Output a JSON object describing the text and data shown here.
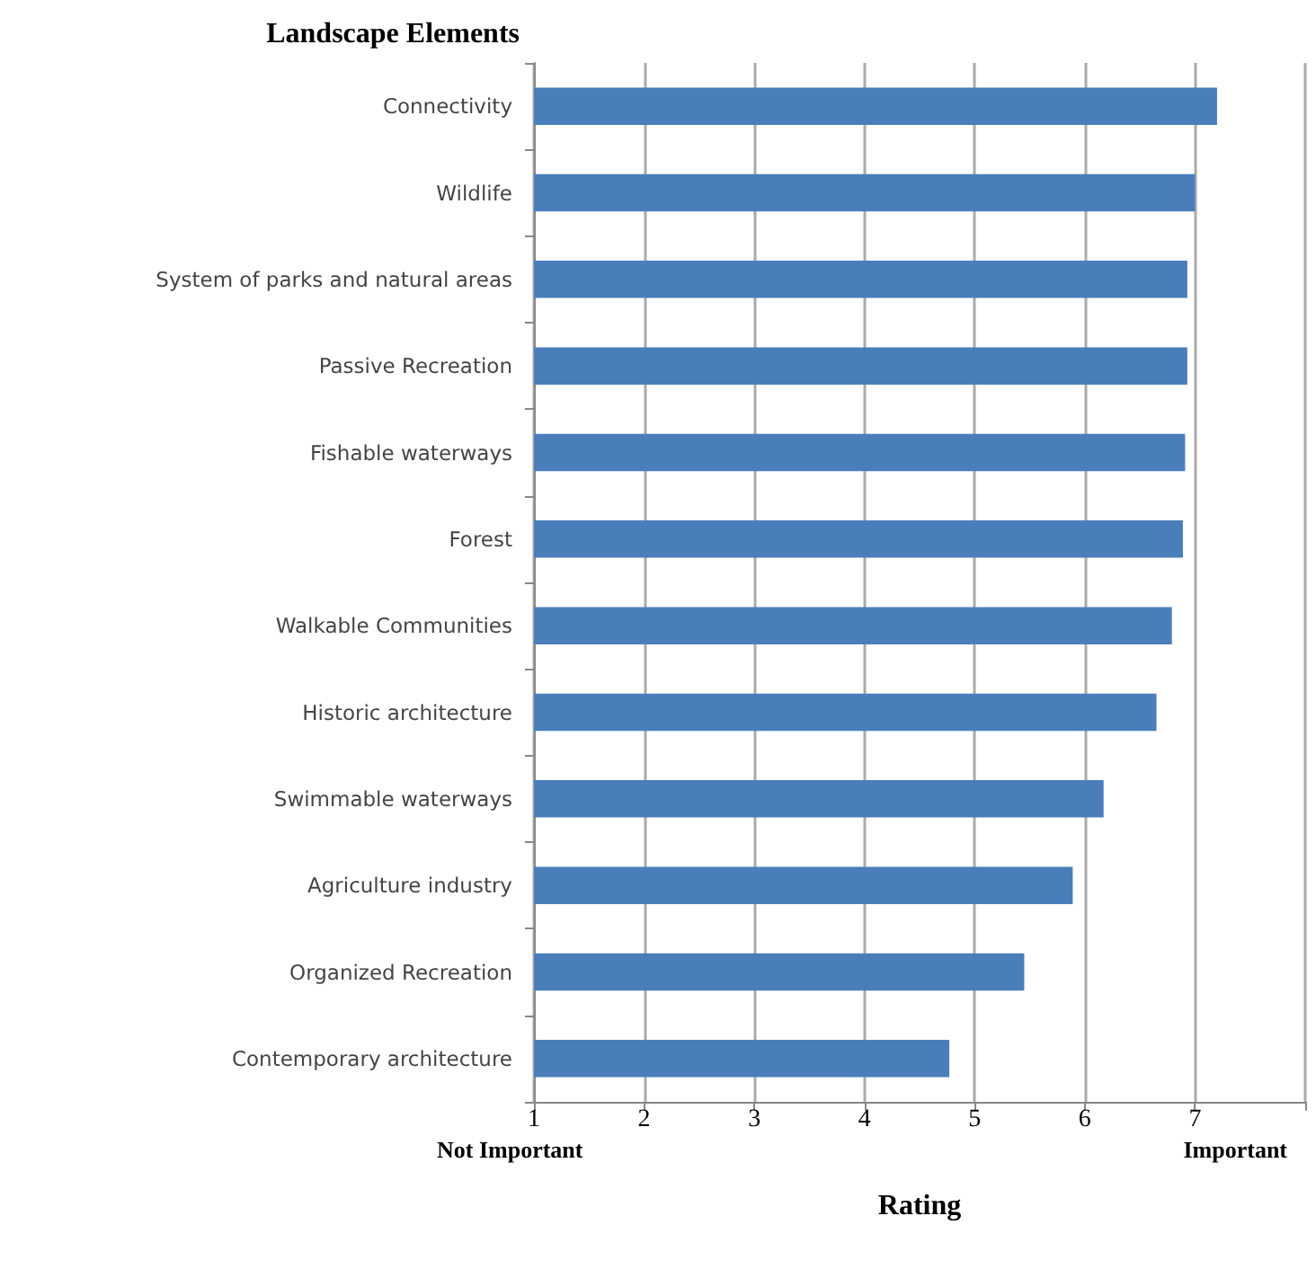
{
  "chart_data": {
    "type": "bar",
    "orientation": "horizontal",
    "ylabel": "Landscape Elements",
    "xlabel": "Rating",
    "categories": [
      "Connectivity",
      "Wildlife",
      "System of parks and natural areas",
      "Passive Recreation",
      "Fishable waterways",
      "Forest",
      "Walkable Communities",
      "Historic architecture",
      "Swimmable waterways",
      "Agriculture industry",
      "Organized Recreation",
      "Contemporary architecture"
    ],
    "values": [
      7.2,
      7.0,
      6.93,
      6.93,
      6.91,
      6.89,
      6.79,
      6.65,
      6.17,
      5.89,
      5.45,
      4.77
    ],
    "color": "#4a7ebb",
    "xlim": [
      1,
      8
    ],
    "xticks": [
      1,
      2,
      3,
      4,
      5,
      6,
      7,
      {
        "value": 8,
        "label": null
      }
    ],
    "grid": "x",
    "annotations": [
      "Not Important",
      "Important"
    ]
  }
}
